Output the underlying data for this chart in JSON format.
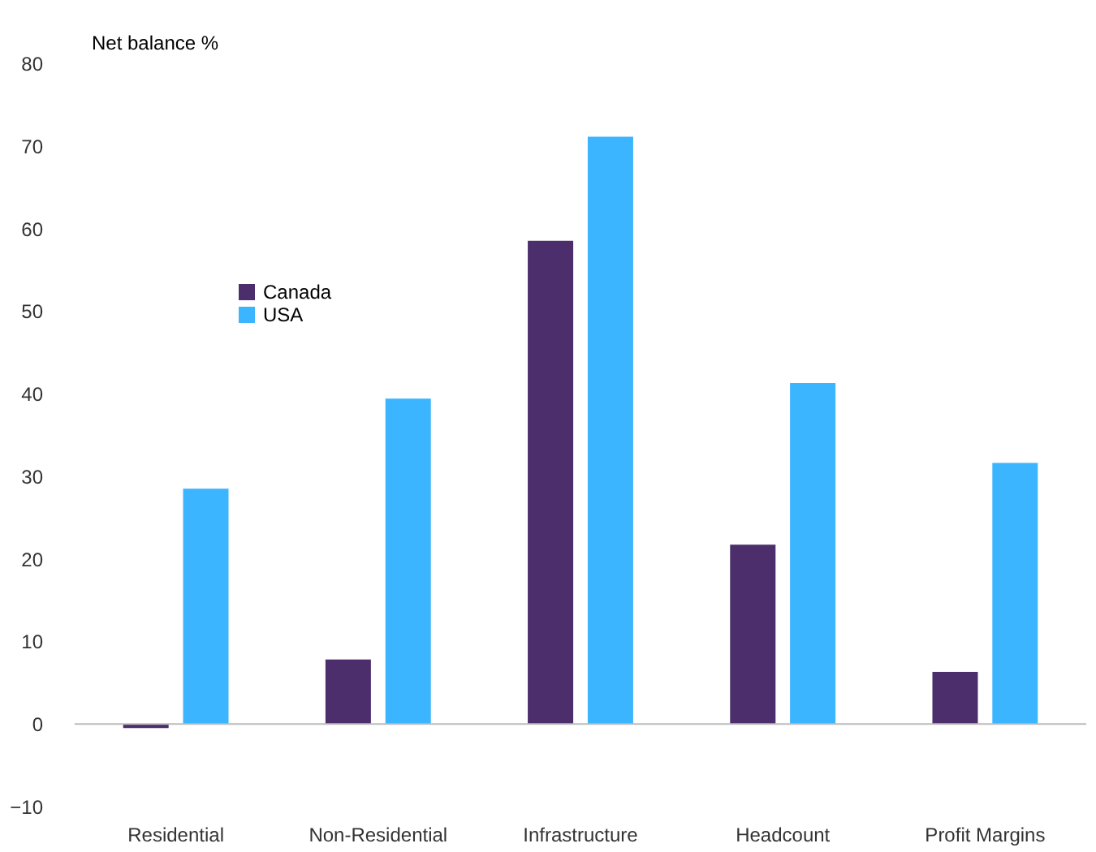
{
  "chart_data": {
    "type": "bar",
    "ylabel": "Net balance %",
    "categories": [
      "Residential",
      "Non-Residential",
      "Infrastructure",
      "Headcount",
      "Profit Margins"
    ],
    "series": [
      {
        "name": "Canada",
        "color": "#4b2e6b",
        "values": [
          -0.5,
          7.8,
          58.5,
          21.7,
          6.3
        ]
      },
      {
        "name": "USA",
        "color": "#3bb5ff",
        "values": [
          28.5,
          39.4,
          71.1,
          41.3,
          31.6
        ]
      }
    ],
    "ylim": [
      -10,
      80
    ],
    "yticks": [
      -10,
      0,
      10,
      20,
      30,
      40,
      50,
      60,
      70,
      80
    ],
    "grid": false,
    "ref_lines": [
      {
        "axis": "y",
        "value": 0,
        "color": "#bbbbbb"
      }
    ],
    "legend": "top left"
  }
}
